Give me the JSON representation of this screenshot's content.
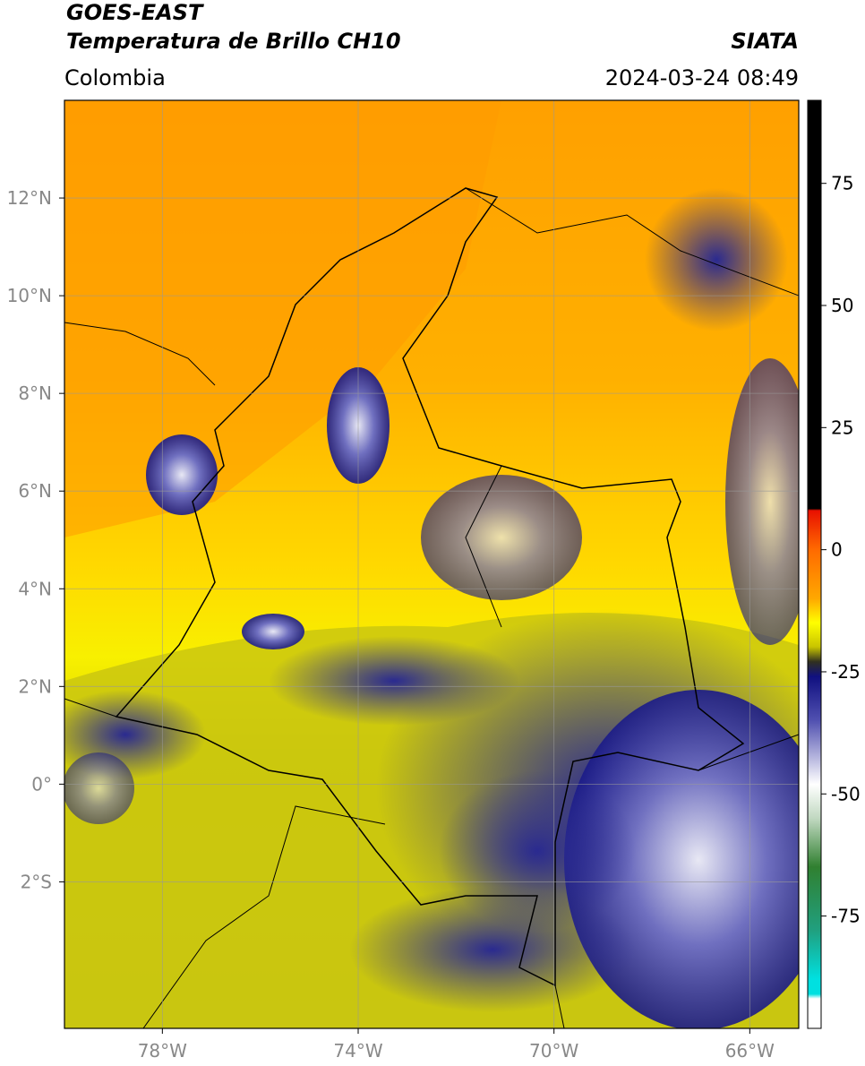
{
  "header": {
    "title": "GOES-EAST",
    "subtitle": "Temperatura de Brillo CH10",
    "source": "SIATA",
    "region": "Colombia",
    "timestamp": "2024-03-24 08:49"
  },
  "map": {
    "lon_range": [
      -80,
      -65
    ],
    "lat_range": [
      -5,
      14
    ],
    "lon_ticks": [
      {
        "value": -78,
        "label": "78°W"
      },
      {
        "value": -74,
        "label": "74°W"
      },
      {
        "value": -70,
        "label": "70°W"
      },
      {
        "value": -66,
        "label": "66°W"
      }
    ],
    "lat_ticks": [
      {
        "value": 12,
        "label": "12°N"
      },
      {
        "value": 10,
        "label": "10°N"
      },
      {
        "value": 8,
        "label": "8°N"
      },
      {
        "value": 6,
        "label": "6°N"
      },
      {
        "value": 4,
        "label": "4°N"
      },
      {
        "value": 2,
        "label": "2°N"
      },
      {
        "value": 0,
        "label": "0°"
      },
      {
        "value": -2,
        "label": "2°S"
      }
    ]
  },
  "colorbar": {
    "range": [
      -98,
      92
    ],
    "ticks": [
      75,
      50,
      25,
      0,
      -25,
      -50,
      -75
    ]
  }
}
